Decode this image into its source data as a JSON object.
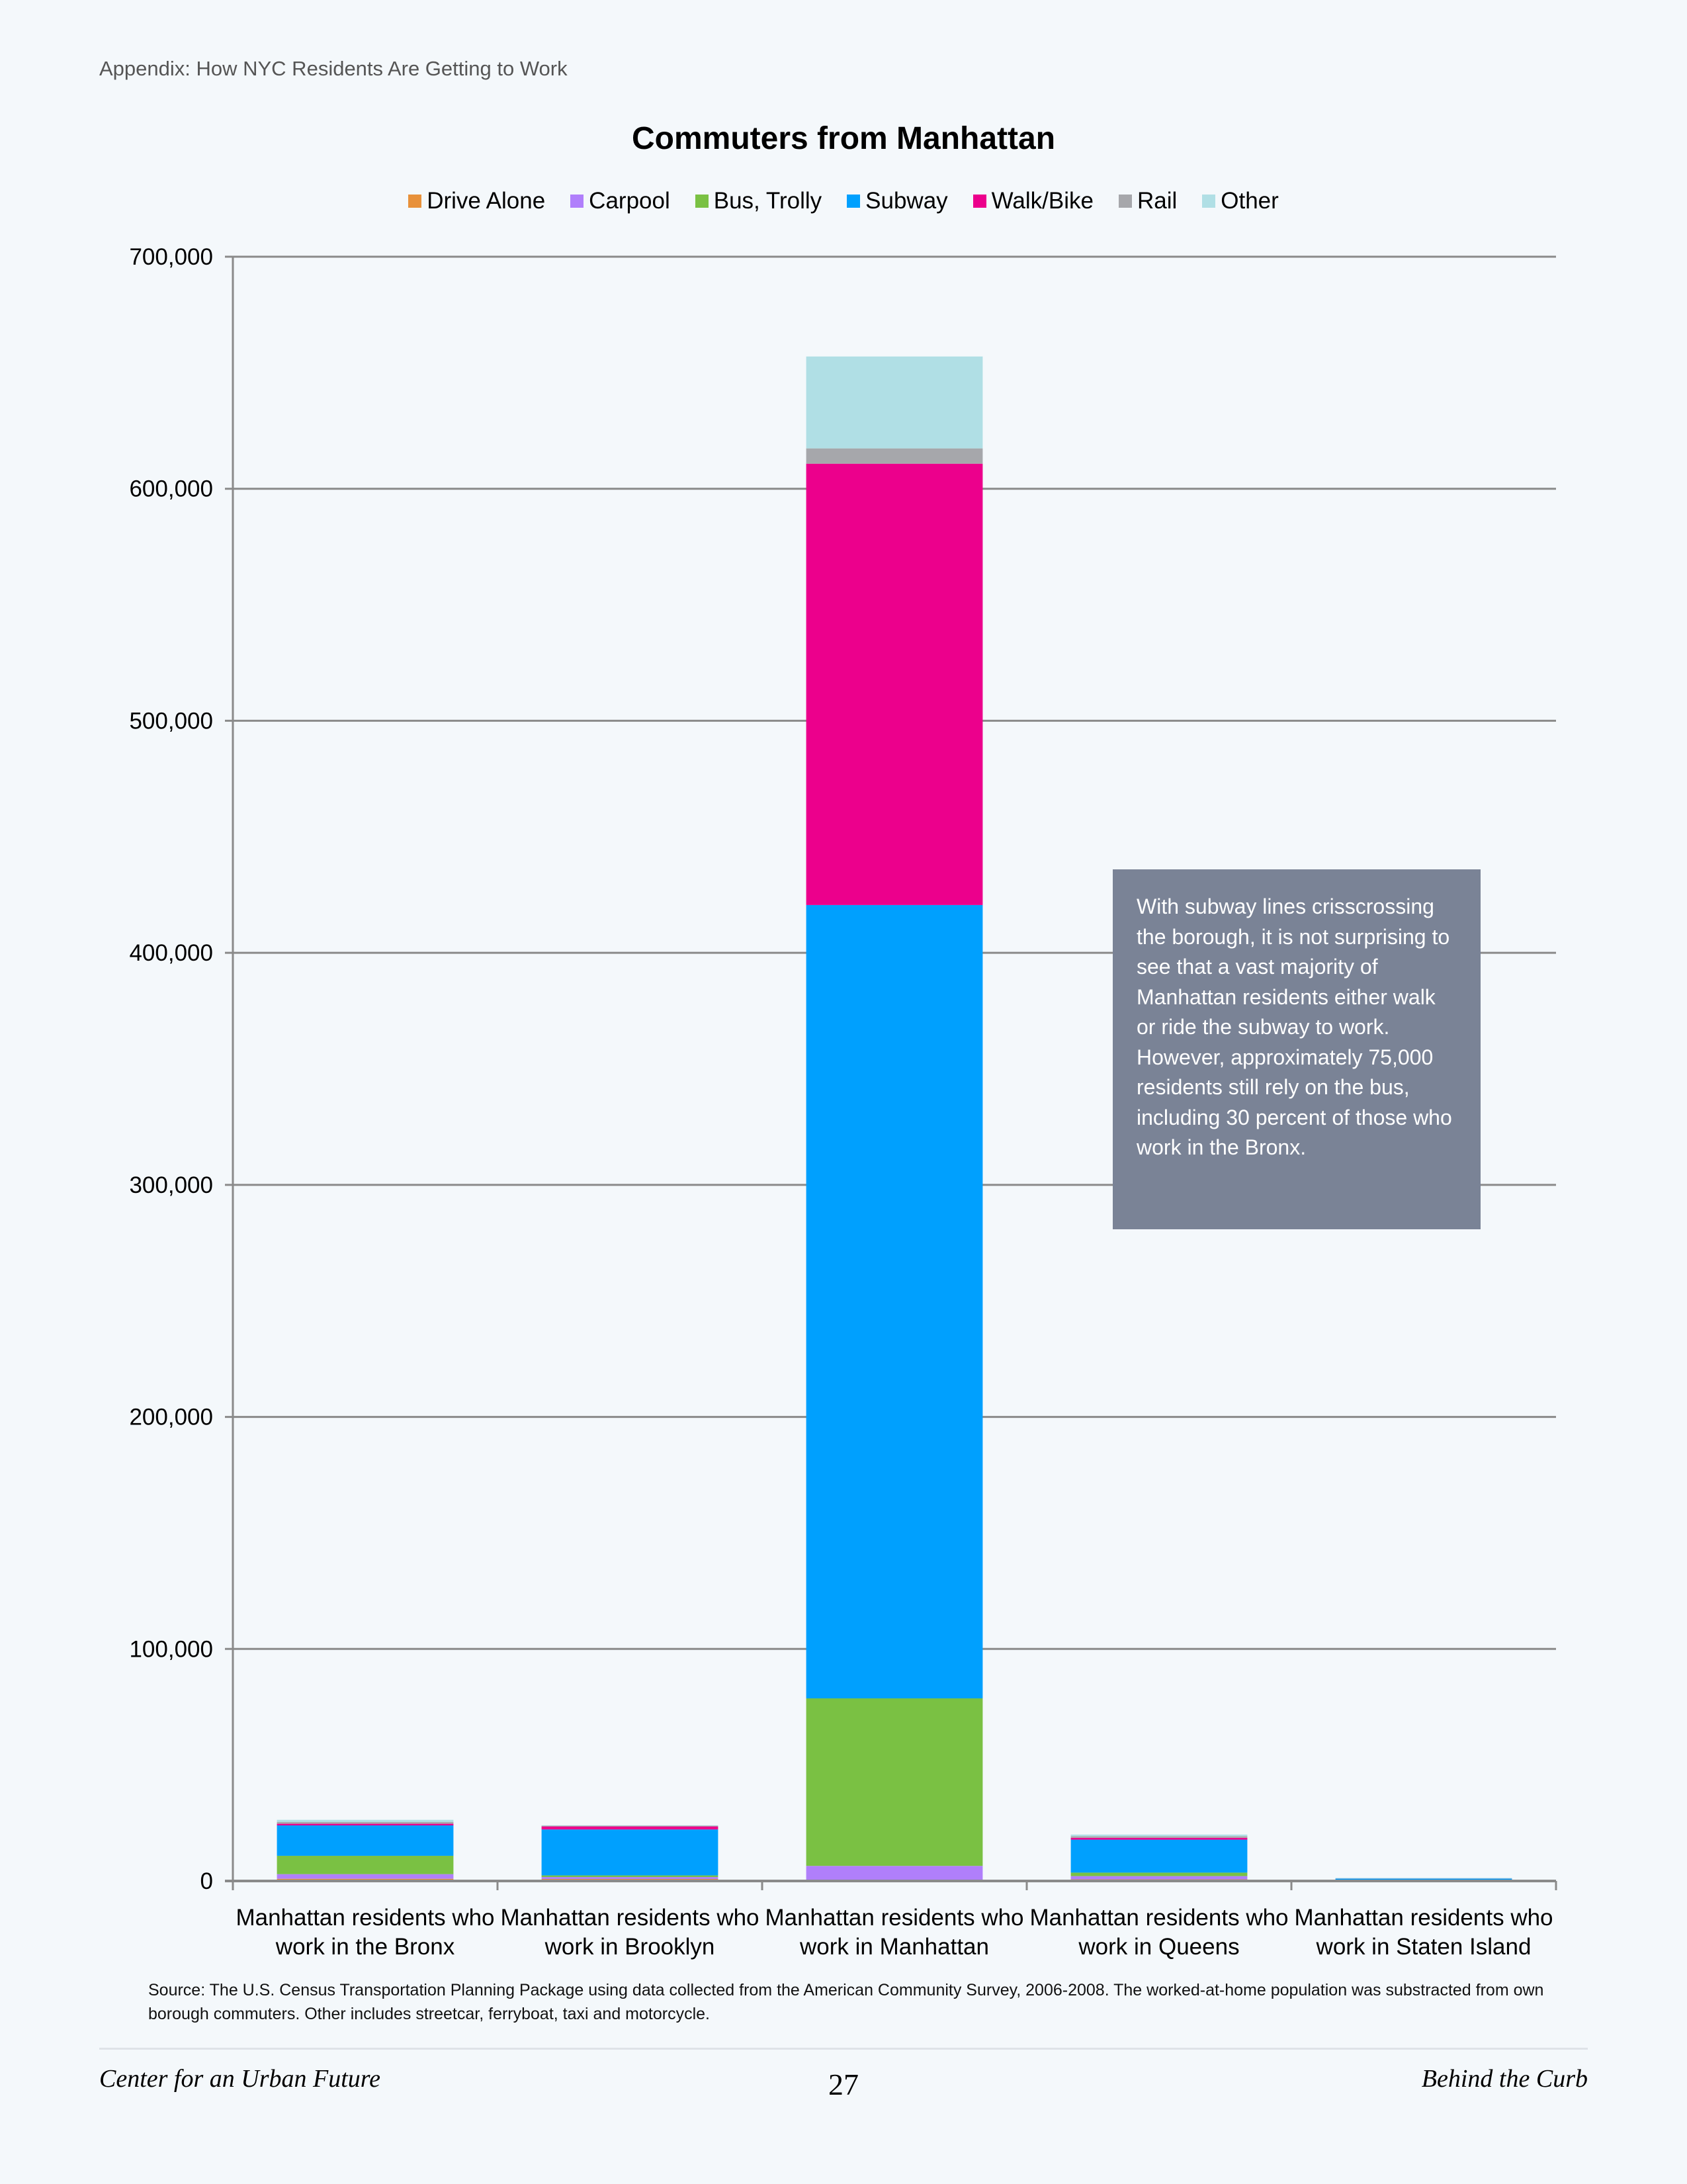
{
  "page": {
    "header": "Appendix: How NYC Residents Are Getting to Work",
    "note": "With subway lines crisscrossing the borough, it is not surprising to see that a vast majority of Manhattan residents either walk or ride the subway to work. However, approximately 75,000 residents still rely on the bus, including 30 percent of those who work in the Bronx.",
    "source": "Source: The U.S. Census Transportation Planning Package using data collected from the American Community Survey, 2006-2008. The worked-at-home population was substracted from own borough commuters. Other includes streetcar, ferryboat, taxi and motorcycle.",
    "footer_left": "Center for an Urban Future",
    "footer_page": "27",
    "footer_right": "Behind the Curb"
  },
  "chart_data": {
    "type": "bar",
    "stacked": true,
    "title": "Commuters from Manhattan",
    "xlabel": "",
    "ylabel": "",
    "ylim": [
      0,
      700000
    ],
    "yticks": [
      0,
      100000,
      200000,
      300000,
      400000,
      500000,
      600000,
      700000
    ],
    "ytick_labels": [
      "0",
      "100,000",
      "200,000",
      "300,000",
      "400,000",
      "500,000",
      "600,000",
      "700,000"
    ],
    "grid": true,
    "legend_position": "top",
    "categories": [
      [
        "Manhattan residents who",
        "work in the Bronx"
      ],
      [
        "Manhattan residents who",
        "work in Brooklyn"
      ],
      [
        "Manhattan residents who",
        "work in Manhattan"
      ],
      [
        "Manhattan residents who",
        "work in Queens"
      ],
      [
        "Manhattan residents who",
        "work in Staten Island"
      ]
    ],
    "series": [
      {
        "name": "Drive Alone",
        "color": "#e8913a",
        "values": [
          950,
          850,
          300,
          700,
          100
        ]
      },
      {
        "name": "Carpool",
        "color": "#b07ffb",
        "values": [
          2000,
          850,
          6200,
          1400,
          50
        ]
      },
      {
        "name": "Bus, Trolly",
        "color": "#7ac143",
        "values": [
          7900,
          700,
          72200,
          1500,
          150
        ]
      },
      {
        "name": "Subway",
        "color": "#00a0fe",
        "values": [
          13100,
          19800,
          341900,
          14200,
          700
        ]
      },
      {
        "name": "Walk/Bike",
        "color": "#ec008c",
        "values": [
          700,
          1300,
          190200,
          800,
          50
        ]
      },
      {
        "name": "Rail",
        "color": "#a6a7ab",
        "values": [
          800,
          300,
          6600,
          700,
          50
        ]
      },
      {
        "name": "Other",
        "color": "#b0dfe5",
        "values": [
          900,
          200,
          39600,
          700,
          200
        ]
      }
    ]
  }
}
